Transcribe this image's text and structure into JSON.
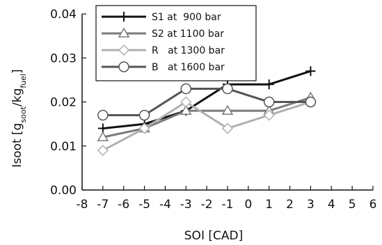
{
  "chart_data": {
    "type": "line",
    "xlabel": "SOI [CAD]",
    "ylabel_parts": [
      "Isoot [g",
      "soot",
      "/kg",
      "fuel",
      "]"
    ],
    "xlim": [
      -8,
      6
    ],
    "ylim": [
      0,
      0.04
    ],
    "xticks": [
      -8,
      -7,
      -6,
      -5,
      -4,
      -3,
      -2,
      -1,
      0,
      1,
      2,
      3,
      4,
      5,
      6
    ],
    "xtick_labels": [
      "-8",
      "-7",
      "-6",
      "-5",
      "-4",
      "-3",
      "-2",
      "-1",
      "0",
      "1",
      "2",
      "3",
      "4",
      "5",
      "6"
    ],
    "yticks": [
      0,
      0.01,
      0.02,
      0.03,
      0.04
    ],
    "ytick_labels": [
      "0.00",
      "0.01",
      "0.02",
      "0.03",
      "0.04"
    ],
    "legend_position": "top-left",
    "grid": false,
    "series": [
      {
        "name": "S1 at  900 bar",
        "marker": "plus",
        "color": "#111111",
        "x": [
          -7,
          -5,
          -3,
          -1,
          1,
          3
        ],
        "y": [
          0.014,
          0.015,
          0.018,
          0.024,
          0.024,
          0.027
        ]
      },
      {
        "name": "S2 at 1100 bar",
        "marker": "triangle",
        "color": "#7a7a7a",
        "x": [
          -7,
          -5,
          -3,
          -1,
          1,
          3
        ],
        "y": [
          0.012,
          0.014,
          0.018,
          0.018,
          0.018,
          0.021
        ]
      },
      {
        "name": "R   at 1300 bar",
        "marker": "diamond",
        "color": "#b0b0b0",
        "x": [
          -7,
          -5,
          -3,
          -1,
          1,
          3
        ],
        "y": [
          0.009,
          0.014,
          0.02,
          0.014,
          0.017,
          0.02
        ]
      },
      {
        "name": "B   at 1600 bar",
        "marker": "circle",
        "color": "#555555",
        "x": [
          -7,
          -5,
          -3,
          -1,
          1,
          3
        ],
        "y": [
          0.017,
          0.017,
          0.023,
          0.023,
          0.02,
          0.02
        ]
      }
    ]
  }
}
